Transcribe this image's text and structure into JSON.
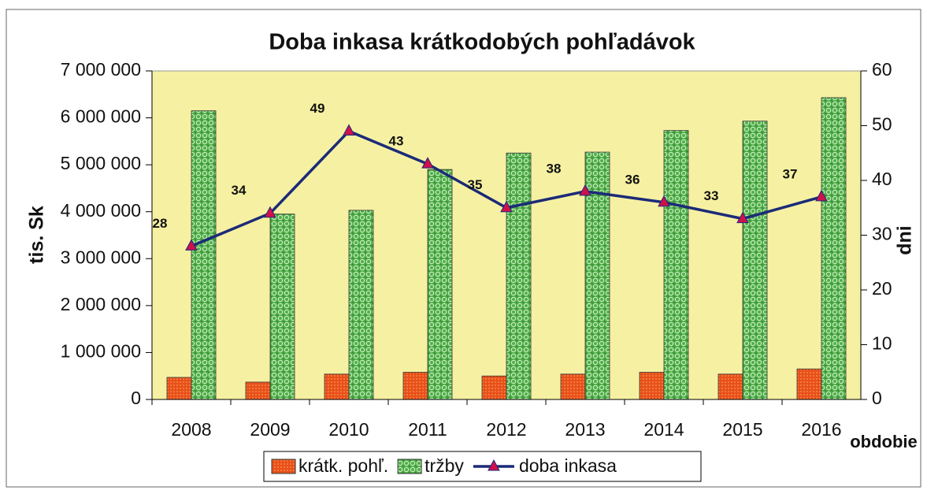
{
  "chart_data": {
    "type": "bar",
    "title": "Doba inkasa krátkodobých pohľadávok",
    "ylabel": "tis. Sk",
    "y2label": "dni",
    "xlabel": "obdobie",
    "categories": [
      "2008",
      "2009",
      "2010",
      "2011",
      "2012",
      "2013",
      "2014",
      "2015",
      "2016"
    ],
    "series": [
      {
        "name": "krátk. pohľ.",
        "color": "#e8501a",
        "values": [
          470000,
          370000,
          540000,
          580000,
          500000,
          540000,
          580000,
          540000,
          650000
        ]
      },
      {
        "name": "tržby",
        "color": "#4fae48",
        "values": [
          6150000,
          3950000,
          4030000,
          4900000,
          5250000,
          5270000,
          5730000,
          5930000,
          6430000
        ]
      },
      {
        "name": "doba inkasa",
        "type": "line",
        "axis": "y2",
        "color": "#1c2a78",
        "marker_color": "#d0104c",
        "values": [
          28,
          34,
          49,
          43,
          35,
          38,
          36,
          33,
          37
        ]
      }
    ],
    "ylim": [
      0,
      7000000
    ],
    "yticks": [
      {
        "value": 0,
        "label": "0"
      },
      {
        "value": 1000000,
        "label": "1 000 000"
      },
      {
        "value": 2000000,
        "label": "2 000 000"
      },
      {
        "value": 3000000,
        "label": "3 000 000"
      },
      {
        "value": 4000000,
        "label": "4 000 000"
      },
      {
        "value": 5000000,
        "label": "5 000 000"
      },
      {
        "value": 6000000,
        "label": "6 000 000"
      },
      {
        "value": 7000000,
        "label": "7 000 000"
      }
    ],
    "y2lim": [
      0,
      60
    ],
    "y2ticks": [
      0,
      10,
      20,
      30,
      40,
      50,
      60
    ],
    "legend": "bottom",
    "plot_background": "#f6f1a2"
  }
}
